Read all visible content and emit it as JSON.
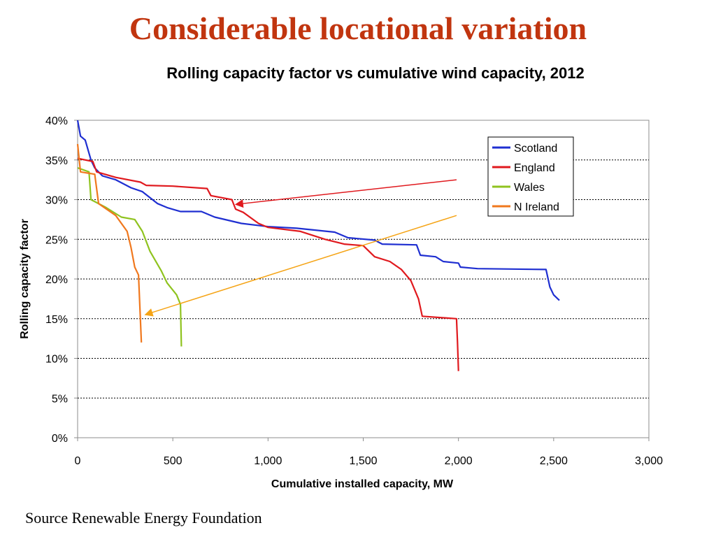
{
  "slide": {
    "title": "Considerable locational variation",
    "source": "Source Renewable Energy Foundation"
  },
  "chart_data": {
    "type": "line",
    "title": "Rolling capacity factor vs cumulative wind capacity, 2012",
    "xlabel": "Cumulative installed capacity, MW",
    "ylabel": "Rolling capacity factor",
    "xlim": [
      0,
      3000
    ],
    "ylim": [
      0,
      40
    ],
    "x_ticks": [
      0,
      500,
      1000,
      1500,
      2000,
      2500,
      3000
    ],
    "x_tick_labels": [
      "0",
      "500",
      "1,000",
      "1,500",
      "2,000",
      "2,500",
      "3,000"
    ],
    "y_ticks": [
      0,
      5,
      10,
      15,
      20,
      25,
      30,
      35,
      40
    ],
    "y_tick_labels": [
      "0%",
      "5%",
      "10%",
      "15%",
      "20%",
      "25%",
      "30%",
      "35%",
      "40%"
    ],
    "grid": "horizontal dotted",
    "legend_position": "top-right",
    "series": [
      {
        "name": "Scotland",
        "color": "#1f2fd1",
        "points": [
          [
            0,
            40
          ],
          [
            15,
            38
          ],
          [
            40,
            37.5
          ],
          [
            70,
            35
          ],
          [
            90,
            34
          ],
          [
            130,
            33
          ],
          [
            200,
            32.5
          ],
          [
            280,
            31.5
          ],
          [
            340,
            31
          ],
          [
            420,
            29.5
          ],
          [
            470,
            29
          ],
          [
            540,
            28.5
          ],
          [
            650,
            28.5
          ],
          [
            720,
            27.8
          ],
          [
            860,
            27
          ],
          [
            1000,
            26.6
          ],
          [
            1150,
            26.4
          ],
          [
            1350,
            25.9
          ],
          [
            1420,
            25.2
          ],
          [
            1560,
            24.9
          ],
          [
            1600,
            24.4
          ],
          [
            1780,
            24.3
          ],
          [
            1800,
            23
          ],
          [
            1880,
            22.8
          ],
          [
            1920,
            22.2
          ],
          [
            2000,
            22
          ],
          [
            2010,
            21.5
          ],
          [
            2100,
            21.3
          ],
          [
            2460,
            21.2
          ],
          [
            2480,
            19
          ],
          [
            2500,
            18
          ],
          [
            2530,
            17.3
          ]
        ]
      },
      {
        "name": "England",
        "color": "#e0191e",
        "points": [
          [
            0,
            35.2
          ],
          [
            80,
            34.8
          ],
          [
            100,
            33.5
          ],
          [
            200,
            32.8
          ],
          [
            330,
            32.2
          ],
          [
            360,
            31.8
          ],
          [
            500,
            31.7
          ],
          [
            680,
            31.4
          ],
          [
            700,
            30.5
          ],
          [
            810,
            30
          ],
          [
            830,
            28.8
          ],
          [
            870,
            28.4
          ],
          [
            950,
            27
          ],
          [
            1000,
            26.5
          ],
          [
            1170,
            26
          ],
          [
            1300,
            25
          ],
          [
            1400,
            24.4
          ],
          [
            1500,
            24.2
          ],
          [
            1560,
            22.8
          ],
          [
            1640,
            22.2
          ],
          [
            1700,
            21.2
          ],
          [
            1750,
            19.8
          ],
          [
            1790,
            17.5
          ],
          [
            1810,
            15.3
          ],
          [
            1990,
            15
          ],
          [
            1995,
            12
          ],
          [
            2000,
            8.4
          ]
        ]
      },
      {
        "name": "Wales",
        "color": "#8fc31f",
        "points": [
          [
            0,
            34
          ],
          [
            60,
            33.5
          ],
          [
            70,
            30
          ],
          [
            150,
            29
          ],
          [
            230,
            27.8
          ],
          [
            300,
            27.5
          ],
          [
            340,
            26
          ],
          [
            380,
            23.5
          ],
          [
            440,
            21
          ],
          [
            470,
            19.5
          ],
          [
            520,
            18
          ],
          [
            540,
            16.8
          ],
          [
            545,
            11.5
          ]
        ]
      },
      {
        "name": "N Ireland",
        "color": "#f0781e",
        "points": [
          [
            0,
            37
          ],
          [
            15,
            33.5
          ],
          [
            90,
            33.2
          ],
          [
            110,
            29.5
          ],
          [
            200,
            28
          ],
          [
            260,
            26
          ],
          [
            280,
            24
          ],
          [
            300,
            21.5
          ],
          [
            320,
            20.5
          ],
          [
            335,
            12
          ]
        ]
      }
    ],
    "annotations": [
      {
        "type": "arrow",
        "color": "#e0191e",
        "from": [
          1990,
          32.5
        ],
        "to": [
          830,
          29.4
        ]
      },
      {
        "type": "arrow",
        "color": "#f5a416",
        "from": [
          1990,
          28
        ],
        "to": [
          355,
          15.5
        ]
      }
    ]
  }
}
